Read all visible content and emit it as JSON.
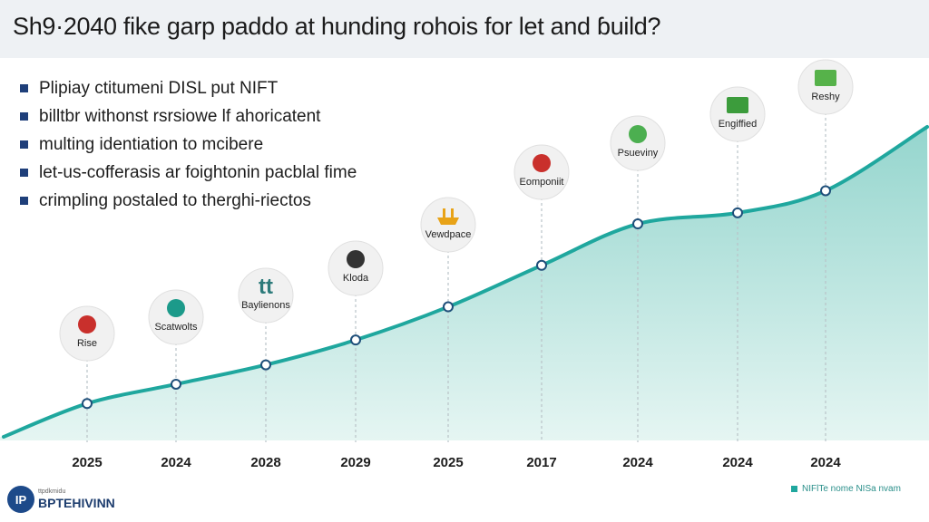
{
  "title": "Sh9·2040 fike garp paddo at hunding rohois for let and ɓuild?",
  "bullets": [
    "Plipiay ctitumeni DISL put NIFT",
    "billtbr withonst rsrsiowe lf ahoricatent",
    "multing identiation to mcibere",
    "let-us-cofferasis ar foightonin pacblal fime",
    "crimpling postaled to therghi-riectos"
  ],
  "brand": {
    "small_text": "ttpdkmidu",
    "name": "BPTEHIVINN",
    "logo_text": "IP"
  },
  "legend": {
    "label": "NIFlTe nome NISa nvam"
  },
  "colors": {
    "accent": "#1fa79e",
    "fill": "#bfe6e1",
    "title_bar": "#eef1f4",
    "bullet": "#1f3f7a"
  },
  "chart_data": {
    "type": "area",
    "categories": [
      "2025",
      "2024",
      "2028",
      "2029",
      "2025",
      "2017",
      "2024",
      "2024",
      "2024"
    ],
    "values": [
      14,
      21,
      28,
      37,
      49,
      64,
      79,
      83,
      91
    ],
    "grid": false,
    "milestones": [
      {
        "label": "Rise",
        "icon": "red-circle-icon"
      },
      {
        "label": "Scatwolts",
        "icon": "teal-leaf-icon"
      },
      {
        "label": "Baylienons",
        "icon": "green-tt-icon"
      },
      {
        "label": "Kloda",
        "icon": "pan-icon"
      },
      {
        "label": "Vewdpace",
        "icon": "candles-icon"
      },
      {
        "label": "Eomponiit",
        "icon": "red-bell-icon"
      },
      {
        "label": "Psueviny",
        "icon": "green-target-icon"
      },
      {
        "label": "Engiffied",
        "icon": "green-stack-icon"
      },
      {
        "label": "Reshy",
        "icon": "green-book-icon"
      }
    ]
  }
}
